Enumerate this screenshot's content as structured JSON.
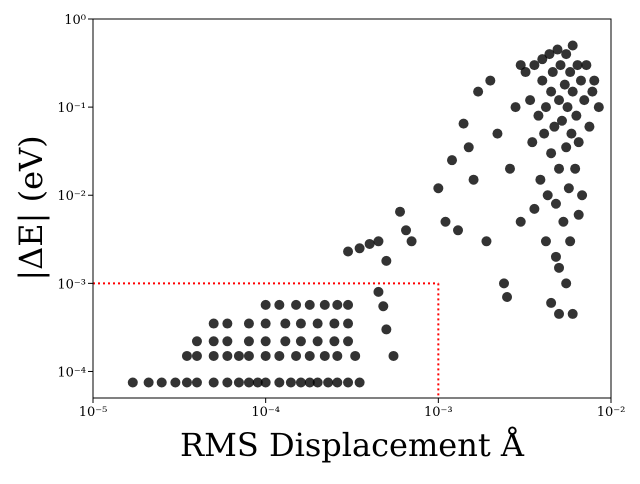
{
  "chart_data": {
    "type": "scatter",
    "x_label": "RMS Displacement Å",
    "y_label": "|ΔE| (eV)",
    "log_x": true,
    "log_y": true,
    "color": "#000000",
    "xlim": [
      1e-05,
      0.01
    ],
    "ylim": [
      5e-05,
      1
    ],
    "xticks": [
      {
        "value": 1e-05,
        "label": "10⁻⁵"
      },
      {
        "value": 0.0001,
        "label": "10⁻⁴"
      },
      {
        "value": 0.001,
        "label": "10⁻³"
      },
      {
        "value": 0.01,
        "label": "10⁻²"
      }
    ],
    "yticks": [
      {
        "value": 0.0001,
        "label": "10⁻⁴"
      },
      {
        "value": 0.001,
        "label": "10⁻³"
      },
      {
        "value": 0.01,
        "label": "10⁻²"
      },
      {
        "value": 0.1,
        "label": "10⁻¹"
      },
      {
        "value": 1,
        "label": "10⁰"
      }
    ],
    "threshold": {
      "x": 0.001,
      "y": 0.001,
      "color": "#ff0000"
    },
    "x": [
      1.7e-05,
      2.1e-05,
      2.5e-05,
      3e-05,
      3.5e-05,
      4e-05,
      5e-05,
      6e-05,
      7e-05,
      8e-05,
      9e-05,
      0.0001,
      0.00012,
      0.00014,
      0.00016,
      0.00018,
      0.0002,
      0.00023,
      0.00026,
      0.0003,
      0.00035,
      3.5e-05,
      4e-05,
      5e-05,
      6e-05,
      7e-05,
      8e-05,
      0.0001,
      0.00012,
      0.00015,
      0.00018,
      0.00022,
      0.00026,
      0.00033,
      0.00055,
      4e-05,
      5e-05,
      6e-05,
      8e-05,
      0.0001,
      0.00013,
      0.00016,
      0.0002,
      0.00025,
      0.0003,
      5e-05,
      6e-05,
      8e-05,
      0.0001,
      0.00013,
      0.00016,
      0.0002,
      0.00025,
      0.0003,
      0.0001,
      0.00012,
      0.00015,
      0.00018,
      0.00022,
      0.00026,
      0.0003,
      0.00045,
      0.00048,
      0.0005,
      0.0003,
      0.00035,
      0.0004,
      0.00045,
      0.0005,
      0.0006,
      0.00065,
      0.0007,
      0.001,
      0.0011,
      0.0012,
      0.0013,
      0.0014,
      0.0015,
      0.0016,
      0.0017,
      0.0019,
      0.002,
      0.0022,
      0.0024,
      0.0025,
      0.0026,
      0.0028,
      0.003,
      0.003,
      0.0032,
      0.0034,
      0.0035,
      0.0036,
      0.0038,
      0.0039,
      0.004,
      0.004,
      0.0041,
      0.0042,
      0.0043,
      0.0044,
      0.0045,
      0.0045,
      0.0046,
      0.0047,
      0.0048,
      0.0049,
      0.005,
      0.005,
      0.0051,
      0.0052,
      0.0053,
      0.0054,
      0.0055,
      0.0055,
      0.0056,
      0.0057,
      0.0058,
      0.0059,
      0.006,
      0.006,
      0.0062,
      0.0063,
      0.0064,
      0.0065,
      0.0067,
      0.0068,
      0.007,
      0.0072,
      0.0075,
      0.0078,
      0.008,
      0.0085,
      0.0042,
      0.005,
      0.0058,
      0.0065,
      0.0036,
      0.0045,
      0.005,
      0.006,
      0.0055,
      0.0048
    ],
    "values": [
      7.5e-05,
      7.5e-05,
      7.5e-05,
      7.5e-05,
      7.5e-05,
      7.5e-05,
      7.5e-05,
      7.5e-05,
      7.5e-05,
      7.5e-05,
      7.5e-05,
      7.5e-05,
      7.5e-05,
      7.5e-05,
      7.5e-05,
      7.5e-05,
      7.5e-05,
      7.5e-05,
      7.5e-05,
      7.5e-05,
      7.5e-05,
      0.00015,
      0.00015,
      0.00015,
      0.00015,
      0.00015,
      0.00015,
      0.00015,
      0.00015,
      0.00015,
      0.00015,
      0.00015,
      0.00015,
      0.00015,
      0.00015,
      0.00022,
      0.00022,
      0.00022,
      0.00022,
      0.00022,
      0.00022,
      0.00022,
      0.00022,
      0.00022,
      0.00022,
      0.00035,
      0.00035,
      0.00035,
      0.00035,
      0.00035,
      0.00035,
      0.00035,
      0.00035,
      0.00035,
      0.00057,
      0.00057,
      0.00057,
      0.00057,
      0.00057,
      0.00057,
      0.00057,
      0.0008,
      0.00055,
      0.0003,
      0.0023,
      0.0025,
      0.0028,
      0.003,
      0.0018,
      0.0065,
      0.004,
      0.003,
      0.012,
      0.005,
      0.025,
      0.004,
      0.065,
      0.035,
      0.015,
      0.15,
      0.003,
      0.2,
      0.05,
      0.001,
      0.0007,
      0.02,
      0.1,
      0.3,
      0.005,
      0.25,
      0.12,
      0.04,
      0.3,
      0.08,
      0.015,
      0.35,
      0.2,
      0.05,
      0.1,
      0.01,
      0.4,
      0.03,
      0.15,
      0.25,
      0.06,
      0.008,
      0.45,
      0.12,
      0.02,
      0.3,
      0.07,
      0.005,
      0.18,
      0.4,
      0.035,
      0.1,
      0.012,
      0.25,
      0.05,
      0.5,
      0.15,
      0.02,
      0.08,
      0.3,
      0.04,
      0.2,
      0.01,
      0.12,
      0.3,
      0.06,
      0.15,
      0.2,
      0.1,
      0.003,
      0.0015,
      0.003,
      0.006,
      0.007,
      0.0006,
      0.00045,
      0.00045,
      0.001,
      0.002
    ]
  }
}
